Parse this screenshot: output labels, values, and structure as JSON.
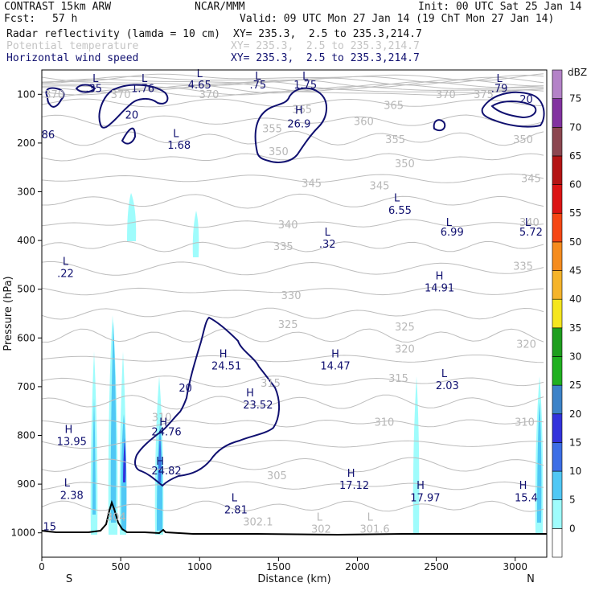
{
  "header": {
    "model": "CONTRAST 15km ARW",
    "center": "NCAR/MMM",
    "init": "Init: 00 UTC Sat 25 Jan 14",
    "fcst_label": "Fcst:",
    "fcst_value": "57 h",
    "valid": "Valid: 09 UTC Mon 27 Jan 14 (19 ChT Mon 27 Jan 14)",
    "fields": [
      {
        "name": "Radar reflectivity (lamda = 10 cm)",
        "xy": "XY= 235.3,  2.5 to 235.3,214.7",
        "color": "#111111"
      },
      {
        "name": "Potential temperature",
        "xy": "XY= 235.3,  2.5 to 235.3,214.7",
        "color": "#c4c4c4"
      },
      {
        "name": "Horizontal wind speed",
        "xy": "XY= 235.3,  2.5 to 235.3,214.7",
        "color": "#101070"
      }
    ]
  },
  "chart_data": {
    "type": "contour",
    "xlabel": "Distance (km)",
    "ylabel": "Pressure (hPa)",
    "xlim": [
      0,
      3200
    ],
    "ylim": [
      1050,
      50
    ],
    "x_ticks": [
      0,
      500,
      1000,
      1500,
      2000,
      2500,
      3000
    ],
    "y_ticks": [
      100,
      200,
      300,
      400,
      500,
      600,
      700,
      800,
      900,
      1000
    ],
    "x_end_labels": {
      "left": "S",
      "right": "N"
    },
    "colorbar": {
      "unit": "dBZ",
      "levels": [
        0,
        5,
        10,
        15,
        20,
        25,
        30,
        35,
        40,
        45,
        50,
        55,
        60,
        65,
        70,
        75
      ],
      "colors": [
        "#ffffff",
        "#9ffcfc",
        "#50c8f5",
        "#3c6ee6",
        "#3232dc",
        "#3c82c8",
        "#20b020",
        "#1e9e1e",
        "#f5e61e",
        "#f5b42a",
        "#f58c1e",
        "#f54614",
        "#dc1414",
        "#b41414",
        "#8c4650",
        "#8232a0",
        "#b482c8"
      ]
    },
    "theta_labels": [
      {
        "text": "370",
        "x": 80,
        "p": 108
      },
      {
        "text": "370",
        "x": 500,
        "p": 108
      },
      {
        "text": "370",
        "x": 1060,
        "p": 108
      },
      {
        "text": "370",
        "x": 2560,
        "p": 108
      },
      {
        "text": "375",
        "x": 2800,
        "p": 108
      },
      {
        "text": "365",
        "x": 1650,
        "p": 138
      },
      {
        "text": "365",
        "x": 2230,
        "p": 130
      },
      {
        "text": "360",
        "x": 2040,
        "p": 163
      },
      {
        "text": "355",
        "x": 1460,
        "p": 178
      },
      {
        "text": "355",
        "x": 2240,
        "p": 200
      },
      {
        "text": "350",
        "x": 1500,
        "p": 225
      },
      {
        "text": "350",
        "x": 2300,
        "p": 250
      },
      {
        "text": "350",
        "x": 3050,
        "p": 200
      },
      {
        "text": "345",
        "x": 1710,
        "p": 290
      },
      {
        "text": "345",
        "x": 2140,
        "p": 295
      },
      {
        "text": "345",
        "x": 3100,
        "p": 280
      },
      {
        "text": "340",
        "x": 1560,
        "p": 375
      },
      {
        "text": "340",
        "x": 3090,
        "p": 370
      },
      {
        "text": "335",
        "x": 1530,
        "p": 420
      },
      {
        "text": "335",
        "x": 3050,
        "p": 460
      },
      {
        "text": "330",
        "x": 1580,
        "p": 520
      },
      {
        "text": "325",
        "x": 1560,
        "p": 580
      },
      {
        "text": "325",
        "x": 2300,
        "p": 585
      },
      {
        "text": "320",
        "x": 2300,
        "p": 630
      },
      {
        "text": "320",
        "x": 3070,
        "p": 620
      },
      {
        "text": "315",
        "x": 1450,
        "p": 700
      },
      {
        "text": "315",
        "x": 2260,
        "p": 690
      },
      {
        "text": "310",
        "x": 760,
        "p": 770
      },
      {
        "text": "310",
        "x": 2170,
        "p": 780
      },
      {
        "text": "310",
        "x": 3060,
        "p": 780
      },
      {
        "text": "305",
        "x": 1490,
        "p": 890
      },
      {
        "text": "304",
        "x": 470,
        "p": 975
      },
      {
        "text": "302.1",
        "x": 1370,
        "p": 985
      },
      {
        "text": "L",
        "x": 1760,
        "p": 975
      },
      {
        "text": "302",
        "x": 1770,
        "p": 1000
      },
      {
        "text": "L",
        "x": 2080,
        "p": 975
      },
      {
        "text": "301.6",
        "x": 2110,
        "p": 1000
      }
    ],
    "wind_labels": [
      {
        "text": "L",
        "x": 340,
        "p": 75
      },
      {
        "text": ".35",
        "x": 330,
        "p": 95
      },
      {
        "text": "L",
        "x": 650,
        "p": 75
      },
      {
        "text": "1.76",
        "x": 640,
        "p": 95
      },
      {
        "text": "L",
        "x": 1000,
        "p": 65
      },
      {
        "text": "4.65",
        "x": 1000,
        "p": 88
      },
      {
        "text": "L",
        "x": 1370,
        "p": 70
      },
      {
        "text": ".75",
        "x": 1370,
        "p": 88
      },
      {
        "text": "L",
        "x": 1670,
        "p": 70
      },
      {
        "text": "1.75",
        "x": 1670,
        "p": 88
      },
      {
        "text": "L",
        "x": 2900,
        "p": 75
      },
      {
        "text": ".79",
        "x": 2900,
        "p": 95
      },
      {
        "text": "H",
        "x": 1630,
        "p": 140
      },
      {
        "text": "26.9",
        "x": 1630,
        "p": 168
      },
      {
        "text": "20",
        "x": 570,
        "p": 150
      },
      {
        "text": "20",
        "x": 3070,
        "p": 118
      },
      {
        "text": "86",
        "x": 40,
        "p": 190
      },
      {
        "text": "L",
        "x": 850,
        "p": 188
      },
      {
        "text": "1.68",
        "x": 870,
        "p": 212
      },
      {
        "text": "L",
        "x": 2250,
        "p": 320
      },
      {
        "text": "6.55",
        "x": 2270,
        "p": 345
      },
      {
        "text": "L",
        "x": 2580,
        "p": 370
      },
      {
        "text": "6.99",
        "x": 2600,
        "p": 390
      },
      {
        "text": "L",
        "x": 1810,
        "p": 390
      },
      {
        "text": ".32",
        "x": 1810,
        "p": 415
      },
      {
        "text": "L",
        "x": 3080,
        "p": 370
      },
      {
        "text": "5.72",
        "x": 3100,
        "p": 390
      },
      {
        "text": "L",
        "x": 150,
        "p": 450
      },
      {
        "text": ".22",
        "x": 150,
        "p": 475
      },
      {
        "text": "H",
        "x": 2520,
        "p": 480
      },
      {
        "text": "14.91",
        "x": 2520,
        "p": 505
      },
      {
        "text": "H",
        "x": 1150,
        "p": 640
      },
      {
        "text": "24.51",
        "x": 1170,
        "p": 665
      },
      {
        "text": "H",
        "x": 1860,
        "p": 640
      },
      {
        "text": "14.47",
        "x": 1860,
        "p": 665
      },
      {
        "text": "L",
        "x": 2550,
        "p": 680
      },
      {
        "text": "2.03",
        "x": 2570,
        "p": 705
      },
      {
        "text": "20",
        "x": 910,
        "p": 710
      },
      {
        "text": "H",
        "x": 1320,
        "p": 720
      },
      {
        "text": "23.52",
        "x": 1370,
        "p": 745
      },
      {
        "text": "H",
        "x": 770,
        "p": 780
      },
      {
        "text": "24.76",
        "x": 790,
        "p": 800
      },
      {
        "text": "H",
        "x": 170,
        "p": 795
      },
      {
        "text": "13.95",
        "x": 190,
        "p": 820
      },
      {
        "text": "H",
        "x": 750,
        "p": 860
      },
      {
        "text": "24.82",
        "x": 790,
        "p": 880
      },
      {
        "text": "H",
        "x": 1960,
        "p": 885
      },
      {
        "text": "17.12",
        "x": 1980,
        "p": 910
      },
      {
        "text": "L",
        "x": 160,
        "p": 905
      },
      {
        "text": "2.38",
        "x": 190,
        "p": 930
      },
      {
        "text": "H",
        "x": 2400,
        "p": 910
      },
      {
        "text": "17.97",
        "x": 2430,
        "p": 935
      },
      {
        "text": "H",
        "x": 3050,
        "p": 910
      },
      {
        "text": "15.4",
        "x": 3070,
        "p": 935
      },
      {
        "text": "L",
        "x": 1220,
        "p": 935
      },
      {
        "text": "2.81",
        "x": 1230,
        "p": 960
      },
      {
        "text": "15",
        "x": 50,
        "p": 995
      }
    ]
  }
}
